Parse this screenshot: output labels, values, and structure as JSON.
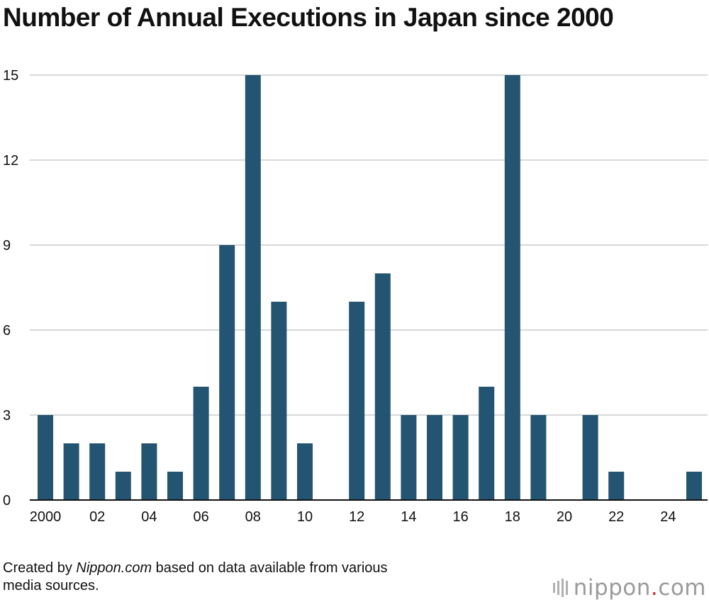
{
  "title": "Number of Annual Executions in Japan since 2000",
  "source": {
    "prefix": "Created by ",
    "site": "Nippon.com",
    "suffix": " based on data available from various",
    "line2": "media sources."
  },
  "logo": {
    "name": "nippon",
    "dot": ".",
    "tld": "com"
  },
  "colors": {
    "bar": "#235471",
    "grid": "#cccccc",
    "axis": "#111111"
  },
  "chart_data": {
    "type": "bar",
    "title": "Number of Annual Executions in Japan since 2000",
    "xlabel": "",
    "ylabel": "",
    "categories": [
      "2000",
      "2001",
      "2002",
      "2003",
      "2004",
      "2005",
      "2006",
      "2007",
      "2008",
      "2009",
      "2010",
      "2011",
      "2012",
      "2013",
      "2014",
      "2015",
      "2016",
      "2017",
      "2018",
      "2019",
      "2020",
      "2021",
      "2022",
      "2023",
      "2024",
      "2025"
    ],
    "values": [
      3,
      2,
      2,
      1,
      2,
      1,
      4,
      9,
      15,
      7,
      2,
      0,
      7,
      8,
      3,
      3,
      3,
      4,
      15,
      3,
      0,
      3,
      1,
      0,
      0,
      1
    ],
    "x_tick_labels": [
      "2000",
      "02",
      "04",
      "06",
      "08",
      "10",
      "12",
      "14",
      "16",
      "18",
      "20",
      "22",
      "24"
    ],
    "y_ticks": [
      0,
      3,
      6,
      9,
      12,
      15
    ],
    "ylim": [
      0,
      15
    ],
    "grid": true
  }
}
